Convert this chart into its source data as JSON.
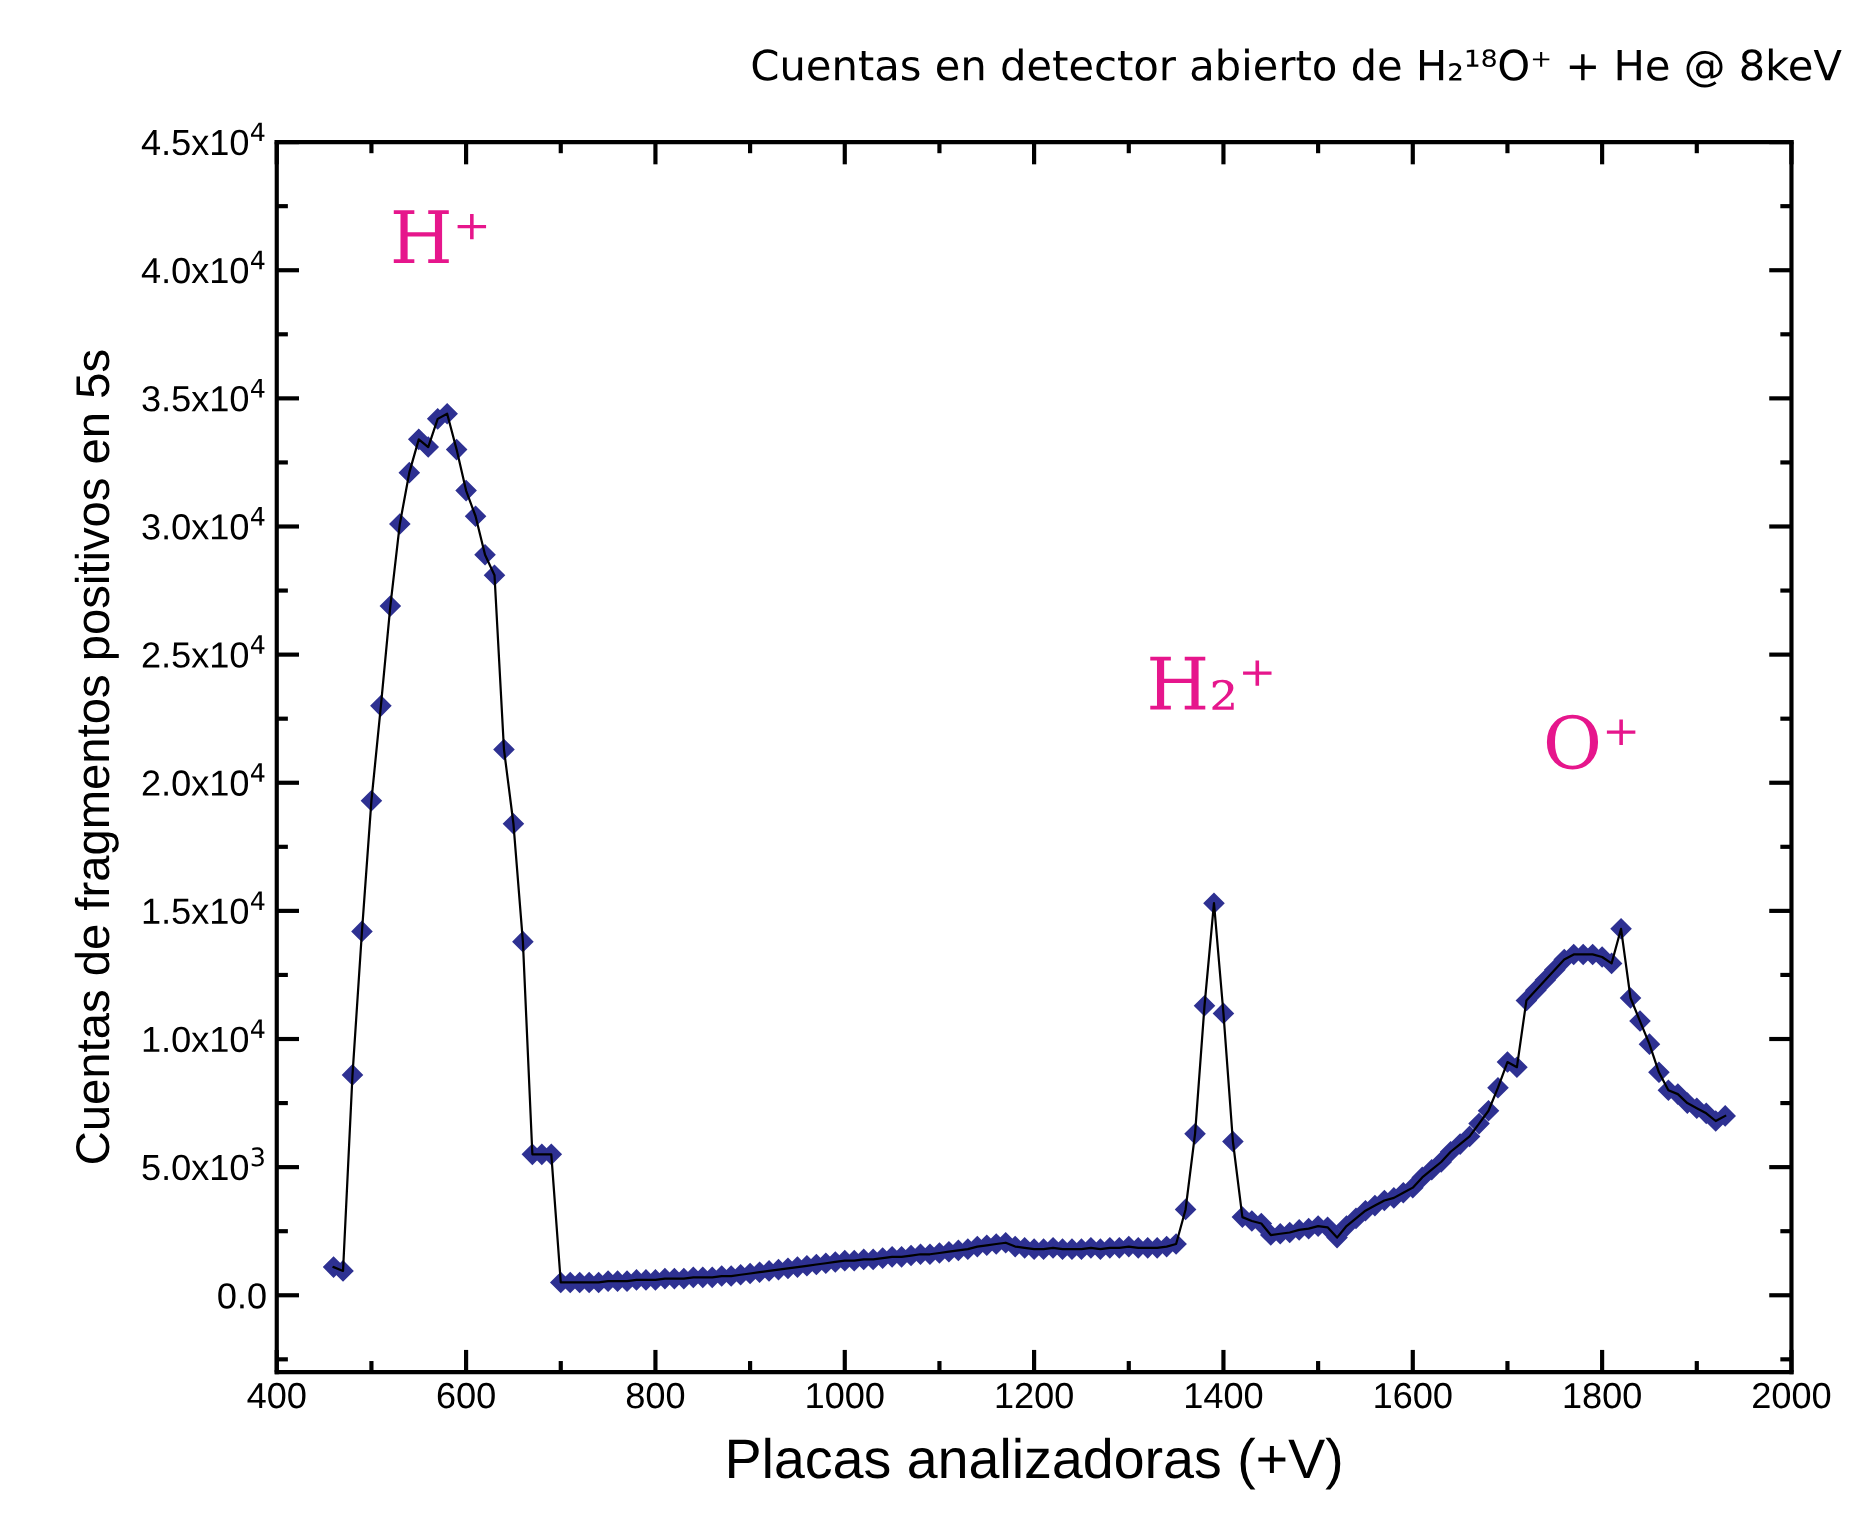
{
  "chart_data": {
    "type": "line",
    "title": "Cuentas en detector abierto de H₂¹⁸O⁺ + He @ 8keV",
    "xlabel": "Placas analizadoras (+V)",
    "ylabel": "Cuentas de fragmentos positivos en 5s",
    "xlim": [
      400,
      2000
    ],
    "xticks": [
      400,
      600,
      800,
      1000,
      1200,
      1400,
      1600,
      1800,
      2000
    ],
    "ylim": [
      -3000,
      45000
    ],
    "yticks": [
      {
        "value": 0,
        "label": "0.0"
      },
      {
        "value": 5000,
        "label": "5.0x10$^{3}$"
      },
      {
        "value": 10000,
        "label": "1.0x10$^{4}$"
      },
      {
        "value": 15000,
        "label": "1.5x10$^{4}$"
      },
      {
        "value": 20000,
        "label": "2.0x10$^{4}$"
      },
      {
        "value": 25000,
        "label": "2.5x10$^{4}$"
      },
      {
        "value": 30000,
        "label": "3.0x10$^{4}$"
      },
      {
        "value": 35000,
        "label": "3.5x10$^{4}$"
      },
      {
        "value": 40000,
        "label": "4.0x10$^{4}$"
      },
      {
        "value": 45000,
        "label": "4.5x10$^{4}$"
      }
    ],
    "grid": false,
    "legend": false,
    "marker": "diamond",
    "line_style": "solid",
    "annotations": [
      "H⁺",
      "H₂⁺",
      "O⁺"
    ],
    "series": [
      {
        "color": "#2e3192",
        "x": [
          460,
          470,
          480,
          490,
          500,
          510,
          520,
          530,
          540,
          550,
          560,
          570,
          580,
          590,
          600,
          610,
          620,
          630,
          640,
          650,
          660,
          670,
          680,
          690,
          700,
          710,
          720,
          730,
          740,
          750,
          760,
          770,
          780,
          790,
          800,
          810,
          820,
          830,
          840,
          850,
          860,
          870,
          880,
          890,
          900,
          910,
          920,
          930,
          940,
          950,
          960,
          970,
          980,
          990,
          1000,
          1010,
          1020,
          1030,
          1040,
          1050,
          1060,
          1070,
          1080,
          1090,
          1100,
          1110,
          1120,
          1130,
          1140,
          1150,
          1160,
          1170,
          1180,
          1190,
          1200,
          1210,
          1220,
          1230,
          1240,
          1250,
          1260,
          1270,
          1280,
          1290,
          1300,
          1310,
          1320,
          1330,
          1340,
          1350,
          1360,
          1370,
          1380,
          1390,
          1400,
          1410,
          1420,
          1430,
          1440,
          1450,
          1460,
          1470,
          1480,
          1490,
          1500,
          1510,
          1520,
          1530,
          1540,
          1550,
          1560,
          1570,
          1580,
          1590,
          1600,
          1610,
          1620,
          1630,
          1640,
          1650,
          1660,
          1670,
          1680,
          1690,
          1700,
          1710,
          1720,
          1730,
          1740,
          1750,
          1760,
          1770,
          1780,
          1790,
          1800,
          1810,
          1820,
          1830,
          1840,
          1850,
          1860,
          1870,
          1880,
          1890,
          1900,
          1910,
          1920,
          1930
        ],
        "values": [
          1100,
          950,
          8600,
          14200,
          19300,
          23000,
          26900,
          30100,
          32100,
          33400,
          33100,
          34200,
          34400,
          33000,
          31400,
          30400,
          28900,
          28100,
          21300,
          18400,
          13800,
          5500,
          5500,
          5500,
          500,
          500,
          500,
          500,
          500,
          550,
          550,
          550,
          600,
          600,
          600,
          650,
          650,
          650,
          700,
          700,
          700,
          750,
          750,
          800,
          850,
          900,
          950,
          1000,
          1050,
          1100,
          1150,
          1200,
          1250,
          1300,
          1350,
          1350,
          1400,
          1400,
          1450,
          1500,
          1500,
          1550,
          1600,
          1600,
          1650,
          1700,
          1750,
          1800,
          1900,
          1950,
          2000,
          2050,
          1900,
          1850,
          1800,
          1800,
          1850,
          1800,
          1800,
          1800,
          1850,
          1800,
          1850,
          1850,
          1900,
          1850,
          1850,
          1850,
          1900,
          2000,
          3350,
          6300,
          11300,
          15300,
          11000,
          6000,
          3050,
          2900,
          2800,
          2350,
          2400,
          2450,
          2550,
          2600,
          2700,
          2650,
          2250,
          2700,
          3000,
          3300,
          3500,
          3700,
          3800,
          4000,
          4200,
          4600,
          4900,
          5200,
          5600,
          5900,
          6200,
          6700,
          7200,
          8100,
          9100,
          8900,
          11500,
          11900,
          12300,
          12700,
          13100,
          13300,
          13300,
          13300,
          13200,
          12950,
          14300,
          11600,
          10700,
          9800,
          8700,
          8000,
          7850,
          7500,
          7300,
          7100,
          6800,
          7000
        ]
      }
    ]
  }
}
